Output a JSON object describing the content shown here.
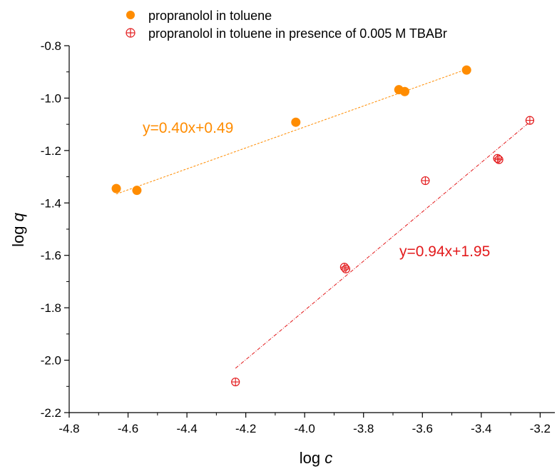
{
  "chart_data": {
    "type": "scatter",
    "xlabel_main": "log ",
    "xlabel_var": "c",
    "ylabel_main": "log ",
    "ylabel_var": "q",
    "xlim": [
      -4.8,
      -3.15
    ],
    "ylim": [
      -2.2,
      -0.8
    ],
    "x_ticks": [
      -4.8,
      -4.6,
      -4.4,
      -4.2,
      -4.0,
      -3.8,
      -3.6,
      -3.4,
      -3.2
    ],
    "x_tick_labels": [
      "-4.8",
      "-4.6",
      "-4.4",
      "-4.2",
      "-4.0",
      "-3.8",
      "-3.6",
      "-3.4",
      "-3.2"
    ],
    "y_ticks": [
      -2.2,
      -2.0,
      -1.8,
      -1.6,
      -1.4,
      -1.2,
      -1.0,
      -0.8
    ],
    "y_tick_labels": [
      "-2.2",
      "-2.0",
      "-1.8",
      "-1.6",
      "-1.4",
      "-1.2",
      "-1.0",
      "-0.8"
    ],
    "legend_position": "top",
    "series": [
      {
        "name": "propranolol in toluene",
        "marker": "filled-circle",
        "color": "#ff8c00",
        "points": [
          {
            "x": -4.64,
            "y": -1.345
          },
          {
            "x": -4.57,
            "y": -1.352
          },
          {
            "x": -4.03,
            "y": -1.092
          },
          {
            "x": -3.68,
            "y": -0.968
          },
          {
            "x": -3.66,
            "y": -0.975
          },
          {
            "x": -3.45,
            "y": -0.893
          }
        ],
        "fit": {
          "slope": 0.4,
          "intercept": 0.49,
          "x_range": [
            -4.64,
            -3.45
          ]
        },
        "equation": "y=0.40x+0.49"
      },
      {
        "name": "propranolol in toluene in presence of 0.005 M TBABr",
        "marker": "crossed-circle",
        "color": "#e31a1c",
        "points": [
          {
            "x": -4.235,
            "y": -2.083
          },
          {
            "x": -3.865,
            "y": -1.645
          },
          {
            "x": -3.86,
            "y": -1.652
          },
          {
            "x": -3.59,
            "y": -1.315
          },
          {
            "x": -3.345,
            "y": -1.23
          },
          {
            "x": -3.34,
            "y": -1.235
          },
          {
            "x": -3.235,
            "y": -1.085
          }
        ],
        "fit": {
          "slope": 0.94,
          "intercept": 1.95,
          "x_range": [
            -4.235,
            -3.235
          ]
        },
        "equation": "y=0.94x+1.95"
      }
    ]
  }
}
